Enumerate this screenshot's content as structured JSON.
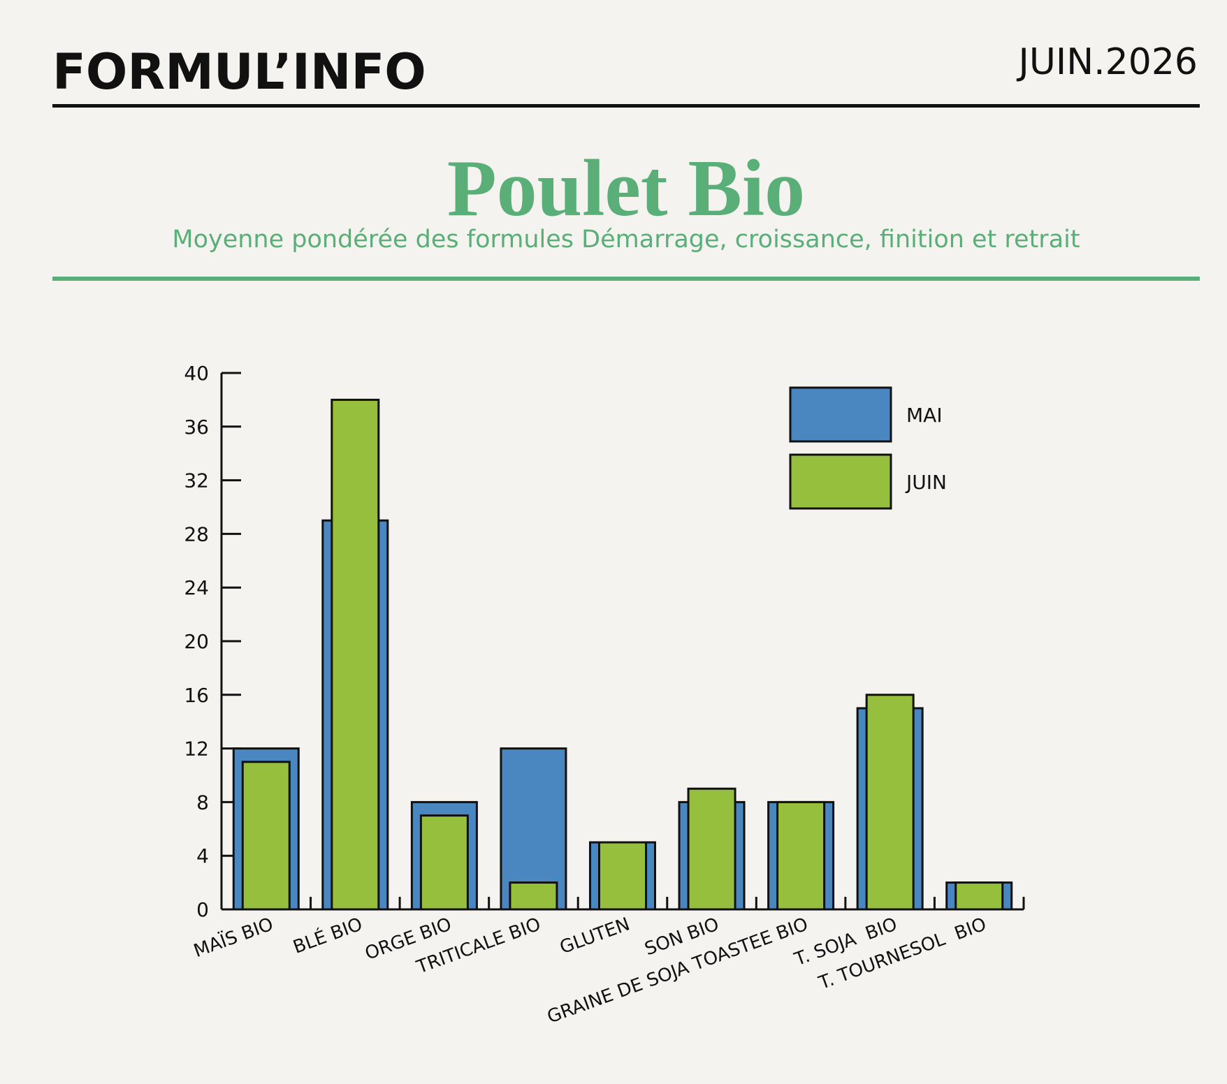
{
  "header": {
    "brand": "FORMUL’INFO",
    "date": "JUIN.2026"
  },
  "chart_data": {
    "type": "bar",
    "title": "Poulet Bio",
    "subtitle": "Moyenne pondérée des formules Démarrage, croissance, finition et retrait",
    "categories": [
      "MAÏS BIO",
      "BLÉ BIO",
      "ORGE BIO",
      "TRITICALE BIO",
      "GLUTEN",
      "SON BIO",
      "GRAINE DE SOJA TOASTEE BIO",
      "T. SOJA  BIO",
      "T. TOURNESOL  BIO"
    ],
    "series": [
      {
        "name": "MAI",
        "color": "#4a86bf",
        "values": [
          12,
          29,
          8,
          12,
          5,
          8,
          8,
          15,
          2
        ]
      },
      {
        "name": "JUIN",
        "color": "#96bf3d",
        "values": [
          11,
          38,
          7,
          2,
          5,
          9,
          8,
          16,
          2
        ]
      }
    ],
    "ylim": [
      0,
      40
    ],
    "yticks": [
      0,
      4,
      8,
      12,
      16,
      20,
      24,
      28,
      32,
      36,
      40
    ]
  }
}
